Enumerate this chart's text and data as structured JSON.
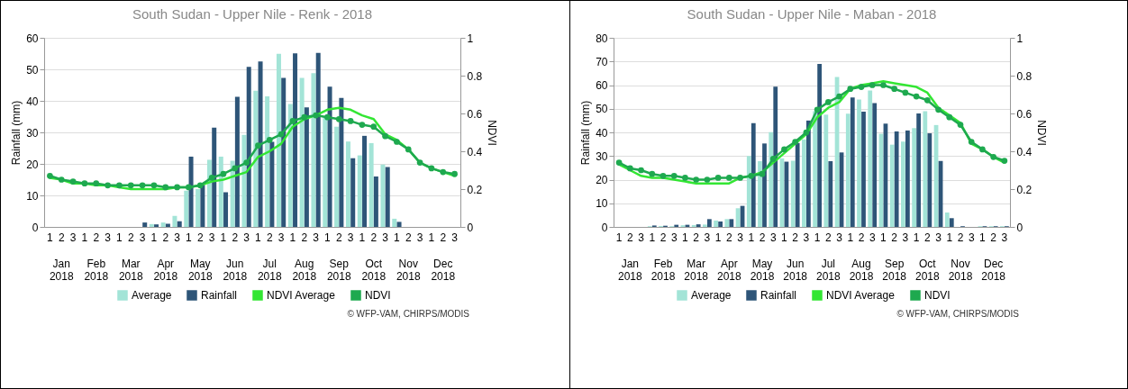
{
  "chart_data": [
    {
      "type": "bar",
      "title": "South Sudan - Upper Nile - Renk - 2018",
      "ylabel": "Rainfall (mm)",
      "y2label": "NDVI",
      "categories": [
        "1",
        "2",
        "3",
        "1",
        "2",
        "3",
        "1",
        "2",
        "3",
        "1",
        "2",
        "3",
        "1",
        "2",
        "3",
        "1",
        "2",
        "3",
        "1",
        "2",
        "3",
        "1",
        "2",
        "3",
        "1",
        "2",
        "3",
        "1",
        "2",
        "3",
        "1",
        "2",
        "3",
        "1",
        "2",
        "3"
      ],
      "series": [
        {
          "name": "Average",
          "color": "#a3e4d7",
          "values": [
            0,
            0,
            0,
            0,
            0,
            0,
            0,
            0,
            0,
            0.9,
            1.4,
            3.5,
            11.5,
            12,
            21.3,
            22.3,
            21,
            29.2,
            43.2,
            41.4,
            54.9,
            39,
            47.3,
            48.8,
            35,
            31.8,
            27.1,
            22.7,
            26.6,
            19.8,
            2.6,
            0,
            0,
            0,
            0,
            0
          ]
        },
        {
          "name": "Rainfall",
          "color": "#2e5578",
          "values": [
            0,
            0,
            0,
            0,
            0,
            0,
            0,
            0,
            1.4,
            0.8,
            1,
            1.8,
            22.3,
            13.5,
            31.5,
            11,
            41.3,
            50.8,
            52.5,
            27,
            47.3,
            55.1,
            37.9,
            55.2,
            44.5,
            40.9,
            21.8,
            28.9,
            16,
            19,
            1.6,
            0,
            0,
            0,
            0,
            0
          ]
        },
        {
          "name": "NDVI Average",
          "type": "line",
          "axis": "y2",
          "marker": "none",
          "color": "#33e633",
          "values": [
            0.26,
            0.25,
            0.23,
            0.23,
            0.22,
            0.22,
            0.21,
            0.2,
            0.2,
            0.2,
            0.2,
            0.21,
            0.21,
            0.22,
            0.24,
            0.25,
            0.27,
            0.29,
            0.37,
            0.4,
            0.44,
            0.53,
            0.57,
            0.59,
            0.62,
            0.63,
            0.62,
            0.59,
            0.57,
            0.49,
            0.46,
            0.41,
            0.34,
            0.31,
            0.29,
            0.27
          ]
        },
        {
          "name": "NDVI",
          "type": "line",
          "axis": "y2",
          "marker": "circle",
          "color": "#1ea94f",
          "values": [
            0.27,
            0.25,
            0.24,
            0.23,
            0.23,
            0.22,
            0.22,
            0.22,
            0.22,
            0.22,
            0.21,
            0.21,
            0.21,
            0.22,
            0.26,
            0.28,
            0.31,
            0.34,
            0.43,
            0.46,
            0.49,
            0.56,
            0.58,
            0.59,
            0.58,
            0.57,
            0.56,
            0.54,
            0.53,
            0.48,
            0.45,
            0.41,
            0.34,
            0.31,
            0.29,
            0.28
          ]
        }
      ],
      "ylim": [
        0,
        60
      ],
      "yticks": [
        0,
        10,
        20,
        30,
        40,
        50,
        60
      ],
      "y2lim": [
        0,
        1
      ],
      "y2ticks": [
        0,
        0.2,
        0.4,
        0.6,
        0.8,
        1
      ],
      "grid": "y",
      "legend": "bottom",
      "annotations": [
        "Jan 2018",
        "Feb 2018",
        "Mar 2018",
        "Apr 2018",
        "May 2018",
        "Jun 2018",
        "Jul 2018",
        "Aug 2018",
        "Sep 2018",
        "Oct 2018",
        "Nov 2018",
        "Dec 2018",
        "© WFP-VAM, CHIRPS/MODIS"
      ]
    },
    {
      "type": "bar",
      "title": "South Sudan - Upper Nile - Maban - 2018",
      "ylabel": "Rainfall (mm)",
      "y2label": "NDVI",
      "categories": [
        "1",
        "2",
        "3",
        "1",
        "2",
        "3",
        "1",
        "2",
        "3",
        "1",
        "2",
        "3",
        "1",
        "2",
        "3",
        "1",
        "2",
        "3",
        "1",
        "2",
        "3",
        "1",
        "2",
        "3",
        "1",
        "2",
        "3",
        "1",
        "2",
        "3",
        "1",
        "2",
        "3",
        "1",
        "2",
        "3"
      ],
      "series": [
        {
          "name": "Average",
          "color": "#a3e4d7",
          "values": [
            0,
            0,
            0,
            0.3,
            0.4,
            0.3,
            0.7,
            0.8,
            1,
            2.7,
            3.3,
            7.9,
            30,
            27.8,
            40.1,
            29,
            28,
            37,
            49,
            47.5,
            63.4,
            47.9,
            53.9,
            57.7,
            39.4,
            34.8,
            36.1,
            41.8,
            49,
            43.1,
            6.1,
            0,
            0,
            0.3,
            0.3,
            0.3
          ]
        },
        {
          "name": "Rainfall",
          "color": "#2e5578",
          "values": [
            0,
            0,
            0,
            0.6,
            0.5,
            0.9,
            0.9,
            1.1,
            3.3,
            2.3,
            3.3,
            8.9,
            43.9,
            35.3,
            59.3,
            27.6,
            35.5,
            45,
            69,
            27.8,
            31.5,
            54.8,
            48.8,
            52.4,
            43.7,
            40.4,
            40.8,
            48,
            39.6,
            27.9,
            3.7,
            0.3,
            0,
            0.3,
            0.3,
            0.3
          ]
        },
        {
          "name": "NDVI Average",
          "type": "line",
          "axis": "y2",
          "marker": "none",
          "color": "#33e633",
          "values": [
            0.33,
            0.3,
            0.27,
            0.26,
            0.26,
            0.25,
            0.24,
            0.23,
            0.23,
            0.23,
            0.23,
            0.26,
            0.27,
            0.29,
            0.34,
            0.39,
            0.44,
            0.49,
            0.58,
            0.63,
            0.66,
            0.73,
            0.75,
            0.76,
            0.77,
            0.76,
            0.75,
            0.74,
            0.71,
            0.63,
            0.59,
            0.55,
            0.44,
            0.41,
            0.37,
            0.34
          ]
        },
        {
          "name": "NDVI",
          "type": "line",
          "axis": "y2",
          "marker": "circle",
          "color": "#1ea94f",
          "values": [
            0.34,
            0.31,
            0.3,
            0.28,
            0.27,
            0.27,
            0.26,
            0.25,
            0.25,
            0.26,
            0.26,
            0.26,
            0.27,
            0.28,
            0.36,
            0.41,
            0.45,
            0.5,
            0.62,
            0.66,
            0.69,
            0.73,
            0.74,
            0.75,
            0.75,
            0.73,
            0.71,
            0.69,
            0.67,
            0.62,
            0.58,
            0.54,
            0.45,
            0.41,
            0.37,
            0.35
          ]
        }
      ],
      "ylim": [
        0,
        80
      ],
      "yticks": [
        0,
        10,
        20,
        30,
        40,
        50,
        60,
        70,
        80
      ],
      "y2lim": [
        0,
        1
      ],
      "y2ticks": [
        0,
        0.2,
        0.4,
        0.6,
        0.8,
        1
      ],
      "grid": "y",
      "legend": "bottom",
      "annotations": [
        "Jan 2018",
        "Feb 2018",
        "Mar 2018",
        "Apr 2018",
        "May 2018",
        "Jun 2018",
        "Jul 2018",
        "Aug 2018",
        "Sep 2018",
        "Oct 2018",
        "Nov 2018",
        "Dec 2018",
        "© WFP-VAM, CHIRPS/MODIS"
      ]
    }
  ]
}
